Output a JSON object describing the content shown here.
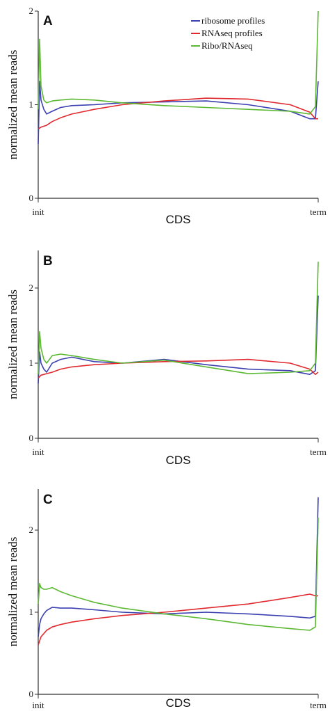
{
  "colors": {
    "ribosome": "#3b3fb0",
    "rnaseq": "#e0292f",
    "ribo_rnaseq": "#5cb833",
    "axis": "#333333"
  },
  "chart_data": [
    {
      "type": "line",
      "panel": "A",
      "xlabel": "CDS",
      "ylabel": "normalized mean reads",
      "x_tick_labels": [
        "init",
        "term"
      ],
      "ylim": [
        0,
        2
      ],
      "yticks": [
        0,
        1,
        2
      ],
      "legend": {
        "placement": "top-right",
        "entries": [
          "ribosome profiles",
          "RNAseq profiles",
          "Ribo/RNAseq"
        ]
      },
      "x": [
        0,
        0.5,
        1,
        2,
        3,
        5,
        8,
        12,
        20,
        30,
        45,
        60,
        75,
        90,
        97,
        99,
        100
      ],
      "series": [
        {
          "name": "ribosome profiles",
          "values": [
            0.58,
            1.25,
            1.05,
            0.95,
            0.9,
            0.93,
            0.97,
            0.99,
            1.0,
            1.02,
            1.03,
            1.04,
            1.0,
            0.93,
            0.85,
            0.85,
            1.25
          ]
        },
        {
          "name": "RNAseq profiles",
          "values": [
            0.74,
            0.75,
            0.76,
            0.77,
            0.78,
            0.82,
            0.86,
            0.9,
            0.95,
            1.0,
            1.04,
            1.07,
            1.06,
            1.0,
            0.92,
            0.85,
            0.85
          ]
        },
        {
          "name": "Ribo/RNAseq",
          "values": [
            0.95,
            1.7,
            1.2,
            1.05,
            1.02,
            1.04,
            1.05,
            1.06,
            1.05,
            1.02,
            0.99,
            0.97,
            0.95,
            0.93,
            0.9,
            0.98,
            2.0
          ]
        }
      ]
    },
    {
      "type": "line",
      "panel": "B",
      "xlabel": "CDS",
      "ylabel": "normalized mean reads",
      "x_tick_labels": [
        "init",
        "term"
      ],
      "ylim": [
        0,
        2.5
      ],
      "yticks": [
        0,
        1,
        2
      ],
      "x": [
        0,
        0.5,
        1,
        2,
        3,
        5,
        8,
        12,
        20,
        30,
        45,
        60,
        75,
        90,
        97,
        99,
        100
      ],
      "series": [
        {
          "name": "ribosome profiles",
          "values": [
            0.73,
            1.15,
            1.0,
            0.92,
            0.88,
            1.0,
            1.05,
            1.08,
            1.02,
            1.0,
            1.05,
            0.98,
            0.92,
            0.9,
            0.85,
            0.9,
            1.9
          ]
        },
        {
          "name": "RNAseq profiles",
          "values": [
            0.8,
            0.82,
            0.84,
            0.85,
            0.86,
            0.88,
            0.92,
            0.95,
            0.98,
            1.0,
            1.02,
            1.03,
            1.05,
            1.0,
            0.92,
            0.85,
            0.88
          ]
        },
        {
          "name": "Ribo/RNAseq",
          "values": [
            0.85,
            1.42,
            1.2,
            1.05,
            1.0,
            1.1,
            1.12,
            1.1,
            1.05,
            1.0,
            1.04,
            0.95,
            0.86,
            0.88,
            0.9,
            1.0,
            2.35
          ]
        }
      ]
    },
    {
      "type": "line",
      "panel": "C",
      "xlabel": "CDS",
      "ylabel": "normalized mean reads",
      "x_tick_labels": [
        "init",
        "term"
      ],
      "ylim": [
        0,
        2.5
      ],
      "yticks": [
        0,
        1,
        2
      ],
      "x": [
        0,
        0.5,
        1,
        2,
        3,
        5,
        8,
        12,
        20,
        30,
        45,
        60,
        75,
        90,
        97,
        99,
        100
      ],
      "series": [
        {
          "name": "ribosome profiles",
          "values": [
            0.7,
            0.85,
            0.92,
            0.98,
            1.02,
            1.06,
            1.05,
            1.05,
            1.03,
            1.0,
            0.98,
            1.0,
            0.98,
            0.95,
            0.93,
            0.95,
            2.4
          ]
        },
        {
          "name": "RNAseq profiles",
          "values": [
            0.6,
            0.65,
            0.7,
            0.74,
            0.78,
            0.82,
            0.85,
            0.88,
            0.92,
            0.96,
            1.0,
            1.05,
            1.1,
            1.18,
            1.22,
            1.2,
            1.2
          ]
        },
        {
          "name": "Ribo/RNAseq",
          "values": [
            1.1,
            1.35,
            1.3,
            1.28,
            1.28,
            1.3,
            1.25,
            1.2,
            1.12,
            1.05,
            0.98,
            0.92,
            0.85,
            0.8,
            0.78,
            0.82,
            2.15
          ]
        }
      ]
    }
  ]
}
